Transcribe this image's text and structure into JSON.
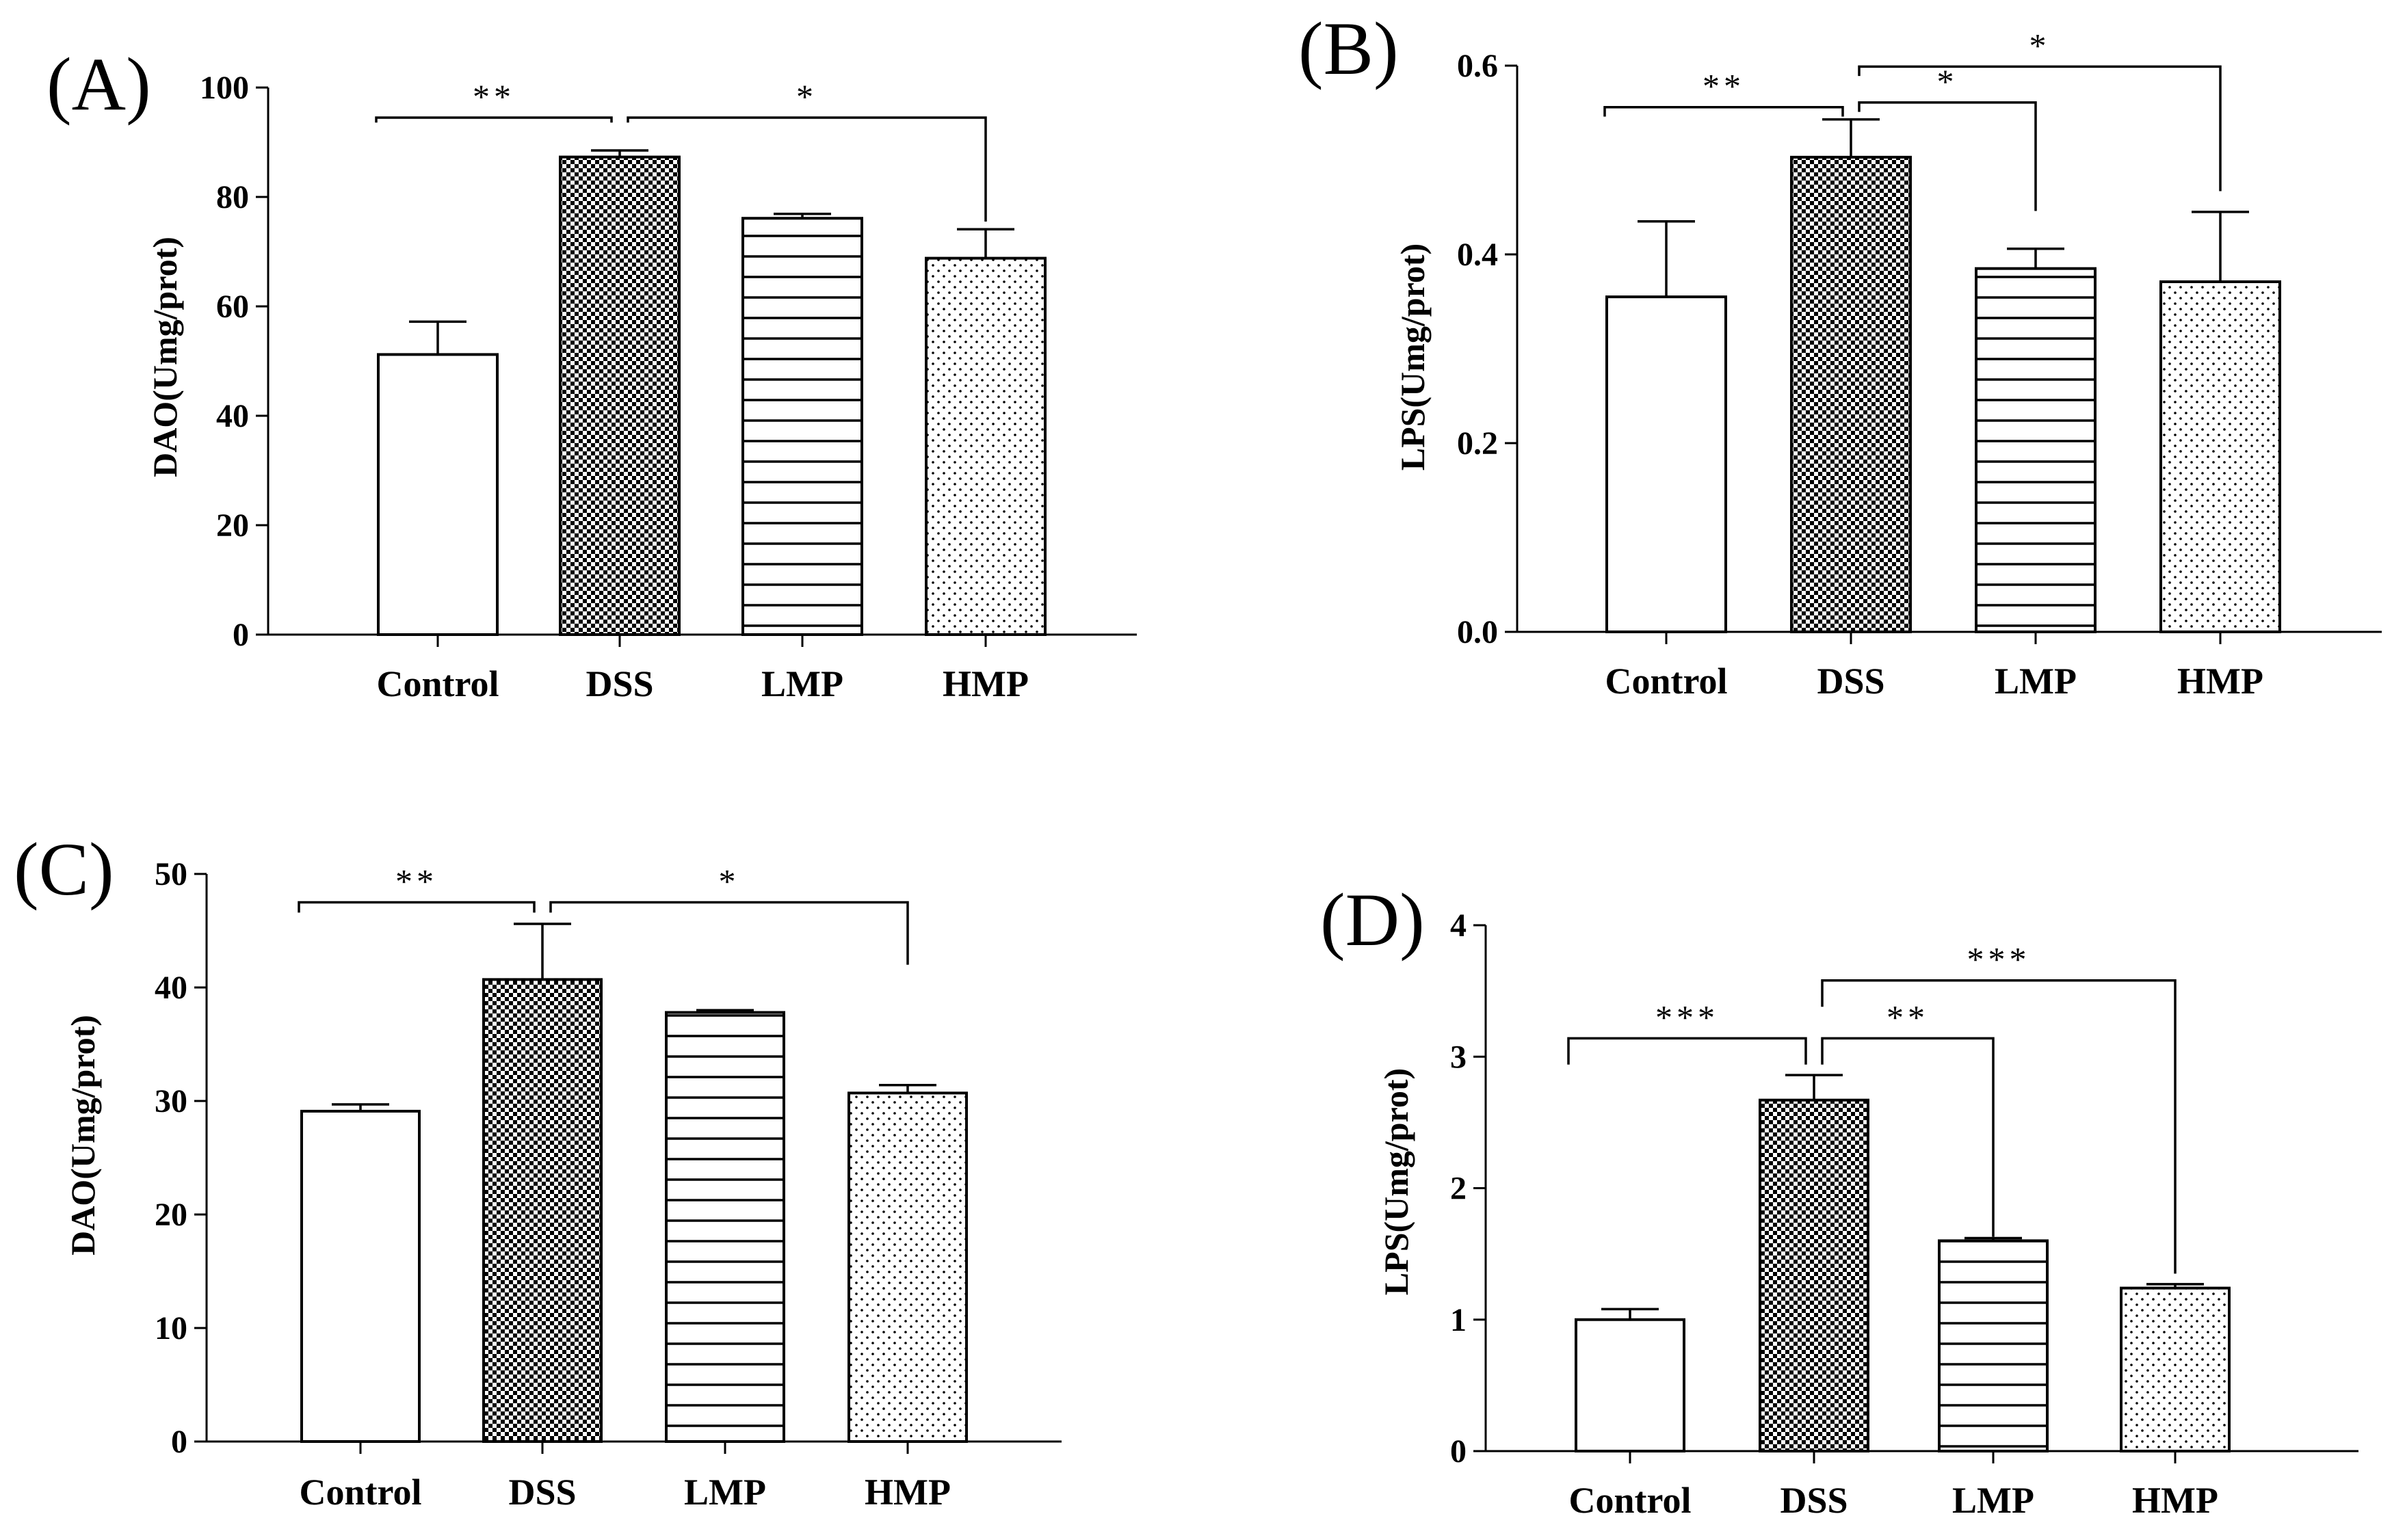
{
  "chart_data": [
    {
      "panel": "(A)",
      "type": "bar",
      "ylabel": "DAO(Umg/prot)",
      "categories": [
        "Control",
        "DSS",
        "LMP",
        "HMP"
      ],
      "values": [
        51.2,
        87.3,
        76.1,
        68.8
      ],
      "errors": [
        6.0,
        1.2,
        0.8,
        5.3
      ],
      "patterns": [
        "blank",
        "checker",
        "hlines",
        "dots"
      ],
      "ylim": [
        0,
        100
      ],
      "yticks": [
        0,
        20,
        40,
        60,
        80,
        100
      ],
      "tick_labels": [
        "0",
        "20",
        "40",
        "60",
        "80",
        "100"
      ],
      "significance": [
        {
          "label": "**",
          "from": 0,
          "to": 1,
          "level": 94.5,
          "drop_from": 0.9,
          "drop_to": 0.9
        },
        {
          "label": "*",
          "from": 1,
          "to": 3,
          "level": 94.5,
          "drop_from": 0.9,
          "drop_to": 19.0
        }
      ]
    },
    {
      "panel": "(B)",
      "type": "bar",
      "ylabel": "LPS(Umg/prot)",
      "categories": [
        "Control",
        "DSS",
        "LMP",
        "HMP"
      ],
      "values": [
        0.355,
        0.503,
        0.385,
        0.371
      ],
      "errors": [
        0.08,
        0.04,
        0.021,
        0.074
      ],
      "patterns": [
        "blank",
        "checker",
        "hlines",
        "dots"
      ],
      "ylim": [
        0,
        0.6
      ],
      "yticks": [
        0,
        0.2,
        0.4,
        0.6
      ],
      "tick_labels": [
        "0.0",
        "0.2",
        "0.4",
        "0.6"
      ],
      "significance": [
        {
          "label": "**",
          "from": 0,
          "to": 1,
          "level": 0.556,
          "drop_from": 0.01,
          "drop_to": 0.01
        },
        {
          "label": "*",
          "from": 1,
          "to": 2,
          "level": 0.561,
          "drop_from": 0.01,
          "drop_to": 0.115
        },
        {
          "label": "*",
          "from": 1,
          "to": 3,
          "level": 0.599,
          "drop_from": 0.01,
          "drop_to": 0.132
        }
      ]
    },
    {
      "panel": "(C)",
      "type": "bar",
      "ylabel": "DAO(Umg/prot)",
      "categories": [
        "Control",
        "DSS",
        "LMP",
        "HMP"
      ],
      "values": [
        29.1,
        40.7,
        37.8,
        30.7
      ],
      "errors": [
        0.6,
        4.9,
        0.2,
        0.7
      ],
      "patterns": [
        "blank",
        "checker",
        "hlines",
        "dots"
      ],
      "ylim": [
        0,
        50
      ],
      "yticks": [
        0,
        10,
        20,
        30,
        40,
        50
      ],
      "tick_labels": [
        "0",
        "10",
        "20",
        "30",
        "40",
        "50"
      ],
      "significance": [
        {
          "label": "**",
          "from": 0,
          "to": 1,
          "level": 47.5,
          "drop_from": 0.9,
          "drop_to": 0.9
        },
        {
          "label": "*",
          "from": 1,
          "to": 3,
          "level": 47.5,
          "drop_from": 0.9,
          "drop_to": 5.5
        }
      ]
    },
    {
      "panel": "(D)",
      "type": "bar",
      "ylabel": "LPS(Umg/prot)",
      "categories": [
        "Control",
        "DSS",
        "LMP",
        "HMP"
      ],
      "values": [
        1.0,
        2.67,
        1.6,
        1.24
      ],
      "errors": [
        0.08,
        0.19,
        0.02,
        0.03
      ],
      "patterns": [
        "blank",
        "checker",
        "hlines",
        "dots"
      ],
      "ylim": [
        0,
        4
      ],
      "yticks": [
        0,
        1,
        2,
        3,
        4
      ],
      "tick_labels": [
        "0",
        "1",
        "2",
        "3",
        "4"
      ],
      "significance": [
        {
          "label": "***",
          "from": 0,
          "to": 1,
          "level": 3.14,
          "drop_from": 0.2,
          "drop_to": 0.2
        },
        {
          "label": "**",
          "from": 1,
          "to": 2,
          "level": 3.14,
          "drop_from": 0.2,
          "drop_to": 1.51
        },
        {
          "label": "***",
          "from": 1,
          "to": 3,
          "level": 3.58,
          "drop_from": 0.2,
          "drop_to": 2.23
        }
      ]
    }
  ]
}
